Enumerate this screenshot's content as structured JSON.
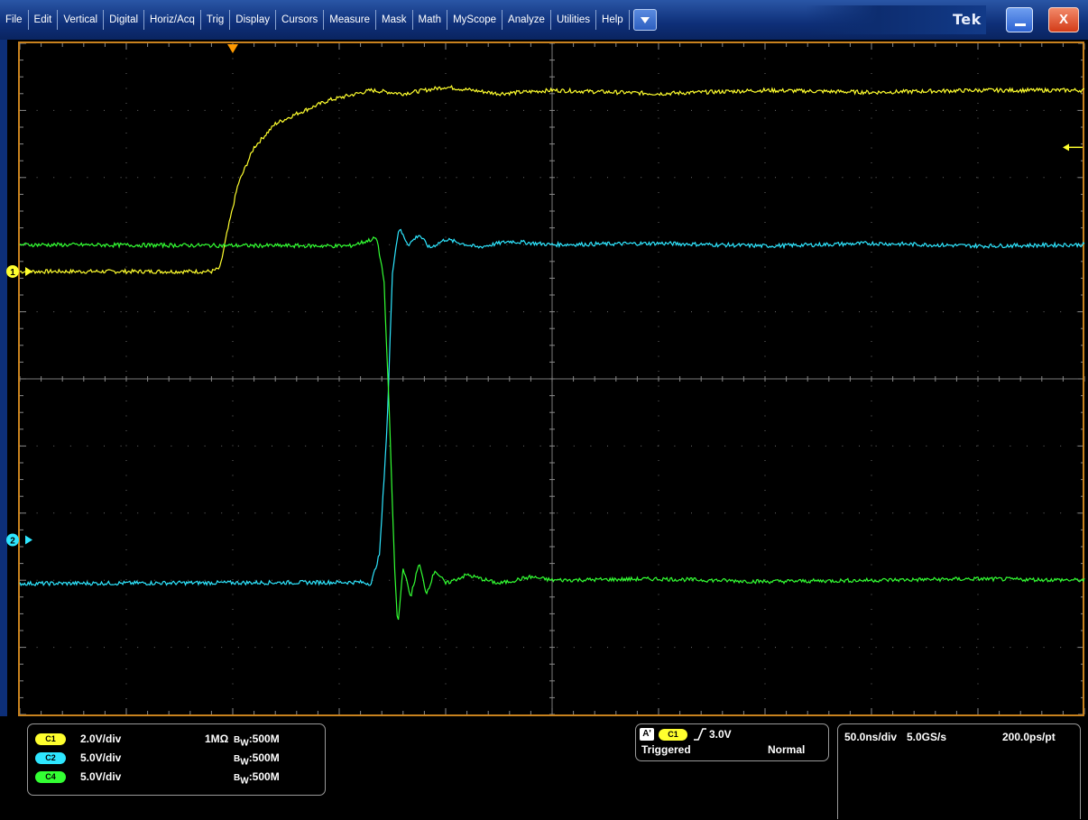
{
  "menu": {
    "items": [
      "File",
      "Edit",
      "Vertical",
      "Digital",
      "Horiz/Acq",
      "Trig",
      "Display",
      "Cursors",
      "Measure",
      "Mask",
      "Math",
      "MyScope",
      "Analyze",
      "Utilities",
      "Help"
    ],
    "brand": "Tek",
    "close_label": "X"
  },
  "colors": {
    "ch1": "#ffff2e",
    "ch2": "#2ee6ff",
    "ch4": "#33ff33",
    "grid": "#6b6b6b",
    "frame": "#c8821e",
    "trigger_marker": "#ff9a00"
  },
  "markers": {
    "ch1": "1",
    "ch2": "2"
  },
  "channels": [
    {
      "badge": "C1",
      "scale": "2.0V/div",
      "impedance": "1MΩ",
      "bw_prefix": "B",
      "bw_sub": "W",
      "bw_value": ":500M",
      "color": "#ffff2e"
    },
    {
      "badge": "C2",
      "scale": "5.0V/div",
      "impedance": "",
      "bw_prefix": "B",
      "bw_sub": "W",
      "bw_value": ":500M",
      "color": "#2ee6ff"
    },
    {
      "badge": "C4",
      "scale": "5.0V/div",
      "impedance": "",
      "bw_prefix": "B",
      "bw_sub": "W",
      "bw_value": ":500M",
      "color": "#33ff33"
    }
  ],
  "trigger": {
    "sequence": "A'",
    "source": "C1",
    "level": "3.0V",
    "status": "Triggered",
    "mode": "Normal"
  },
  "horizontal": {
    "scale": "50.0ns/div",
    "sample_rate": "5.0GS/s",
    "resolution": "200.0ps/pt"
  },
  "chart_data": {
    "type": "line",
    "x_unit": "div",
    "y_unit": "div",
    "xlim": [
      0,
      10
    ],
    "ylim": [
      0,
      10
    ],
    "grid": true,
    "series": [
      {
        "name": "C1",
        "points": [
          [
            0,
            6.6
          ],
          [
            1.8,
            6.6
          ],
          [
            1.88,
            6.65
          ],
          [
            1.95,
            7.2
          ],
          [
            2.05,
            7.9
          ],
          [
            2.2,
            8.45
          ],
          [
            2.4,
            8.8
          ],
          [
            2.6,
            8.95
          ],
          [
            2.9,
            9.15
          ],
          [
            3.3,
            9.3
          ],
          [
            3.6,
            9.25
          ],
          [
            4.0,
            9.35
          ],
          [
            4.5,
            9.25
          ],
          [
            5.0,
            9.3
          ],
          [
            6.0,
            9.25
          ],
          [
            7.0,
            9.3
          ],
          [
            8.0,
            9.27
          ],
          [
            9.0,
            9.3
          ],
          [
            10,
            9.3
          ]
        ]
      },
      {
        "name": "C2",
        "points": [
          [
            0,
            1.95
          ],
          [
            3.2,
            1.97
          ],
          [
            3.3,
            1.95
          ],
          [
            3.38,
            2.4
          ],
          [
            3.45,
            4.3
          ],
          [
            3.5,
            6.6
          ],
          [
            3.56,
            7.25
          ],
          [
            3.65,
            7.0
          ],
          [
            3.75,
            7.15
          ],
          [
            3.85,
            6.95
          ],
          [
            4.0,
            7.08
          ],
          [
            4.3,
            6.96
          ],
          [
            4.6,
            7.05
          ],
          [
            5.0,
            7.0
          ],
          [
            6.0,
            7.02
          ],
          [
            7.0,
            6.98
          ],
          [
            8.0,
            7.02
          ],
          [
            9.0,
            6.98
          ],
          [
            10,
            7.0
          ]
        ]
      },
      {
        "name": "C4",
        "points": [
          [
            0,
            7.0
          ],
          [
            3.1,
            6.98
          ],
          [
            3.25,
            7.05
          ],
          [
            3.35,
            7.1
          ],
          [
            3.42,
            6.5
          ],
          [
            3.47,
            4.5
          ],
          [
            3.52,
            2.2
          ],
          [
            3.55,
            1.3
          ],
          [
            3.6,
            2.2
          ],
          [
            3.67,
            1.75
          ],
          [
            3.75,
            2.25
          ],
          [
            3.82,
            1.8
          ],
          [
            3.9,
            2.15
          ],
          [
            4.0,
            1.95
          ],
          [
            4.2,
            2.08
          ],
          [
            4.5,
            1.95
          ],
          [
            4.8,
            2.05
          ],
          [
            5.0,
            2.0
          ],
          [
            6.0,
            2.02
          ],
          [
            7.0,
            1.98
          ],
          [
            8.0,
            2.0
          ],
          [
            9.0,
            2.02
          ],
          [
            10,
            2.0
          ]
        ]
      }
    ]
  }
}
